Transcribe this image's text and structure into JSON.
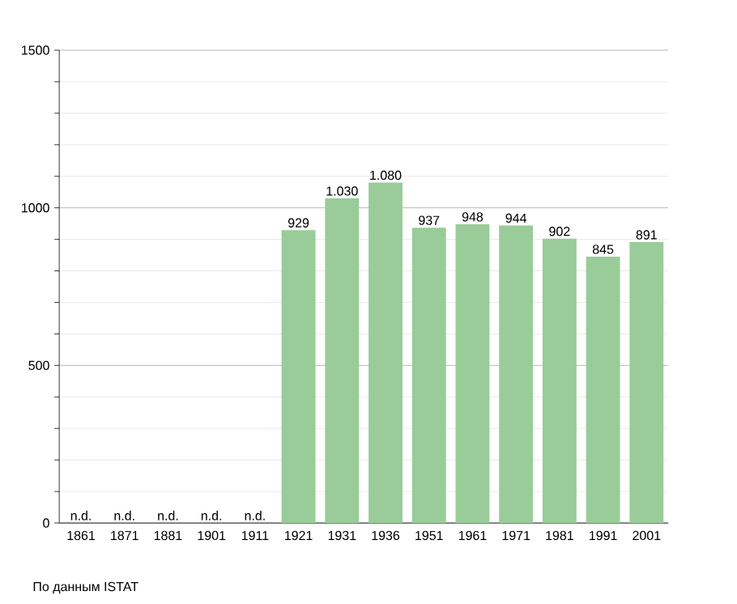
{
  "chart_data": {
    "type": "bar",
    "categories": [
      "1861",
      "1871",
      "1881",
      "1901",
      "1911",
      "1921",
      "1931",
      "1936",
      "1951",
      "1961",
      "1971",
      "1981",
      "1991",
      "2001"
    ],
    "values": [
      null,
      null,
      null,
      null,
      null,
      929,
      1030,
      1080,
      937,
      948,
      944,
      902,
      845,
      891
    ],
    "value_labels": [
      "n.d.",
      "n.d.",
      "n.d.",
      "n.d.",
      "n.d.",
      "929",
      "1.030",
      "1.080",
      "937",
      "948",
      "944",
      "902",
      "845",
      "891"
    ],
    "color": "#99cc99",
    "ylim": [
      0,
      1500
    ],
    "yticks": [
      0,
      {
        "value": 100,
        "label": null
      },
      {
        "value": 200,
        "label": null
      },
      {
        "value": 300,
        "label": null
      },
      {
        "value": 400,
        "label": null
      },
      500,
      {
        "value": 600,
        "label": null
      },
      {
        "value": 700,
        "label": null
      },
      {
        "value": 800,
        "label": null
      },
      {
        "value": 900,
        "label": null
      },
      1000,
      {
        "value": 1100,
        "label": null
      },
      {
        "value": 1200,
        "label": null
      },
      {
        "value": 1300,
        "label": null
      },
      {
        "value": 1400,
        "label": null
      },
      1500
    ],
    "grid": "y",
    "annotations": [
      "По данным ISTAT"
    ]
  }
}
